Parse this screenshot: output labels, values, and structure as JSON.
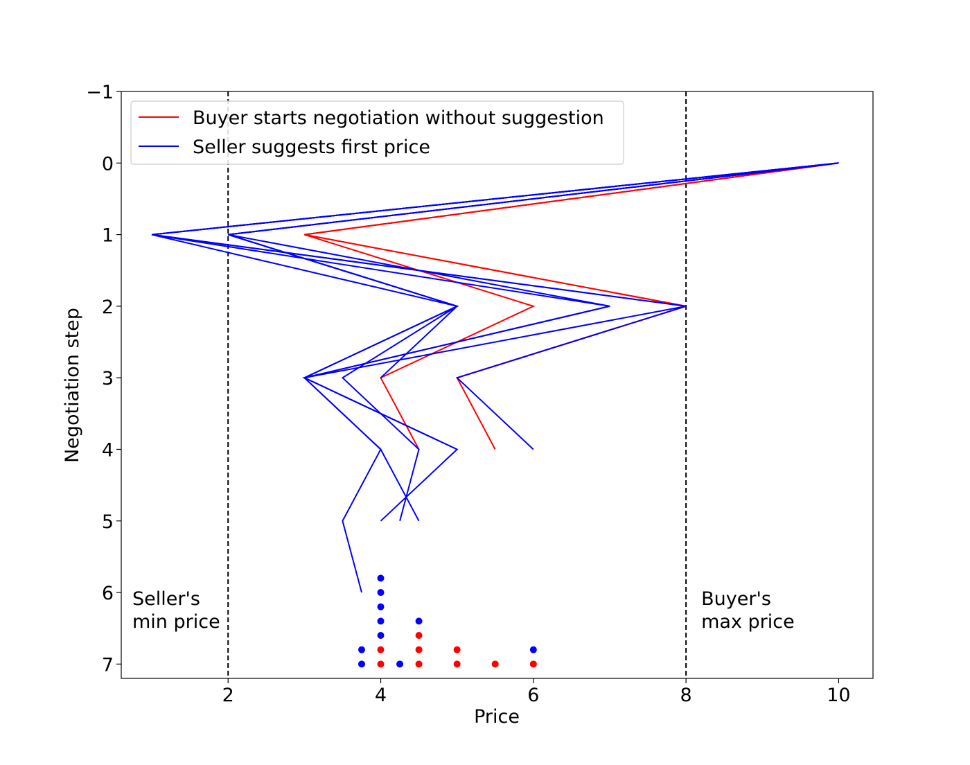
{
  "chart_data": {
    "type": "line",
    "title": "",
    "xlabel": "Price",
    "ylabel": "Negotiation step",
    "xlim": [
      0.6,
      10.45
    ],
    "ylim": [
      7.2,
      -1
    ],
    "y_inverted": true,
    "xticks": [
      2,
      4,
      6,
      8,
      10
    ],
    "yticks": [
      -1,
      0,
      1,
      2,
      3,
      4,
      5,
      6,
      7
    ],
    "ytick_labels": [
      "−1",
      "0",
      "1",
      "2",
      "3",
      "4",
      "5",
      "6",
      "7"
    ],
    "grid": false,
    "legend": {
      "position": "top-left",
      "entries": [
        {
          "label": "Buyer starts negotiation without suggestion",
          "color": "#ff0000"
        },
        {
          "label": "Seller suggests first price",
          "color": "#0000ff"
        }
      ]
    },
    "reference_lines": [
      {
        "x": 2,
        "style": "dashed",
        "label_lines": [
          "Seller's",
          "min price"
        ],
        "label_side": "left"
      },
      {
        "x": 8,
        "style": "dashed",
        "label_lines": [
          "Buyer's",
          "max price"
        ],
        "label_side": "right"
      }
    ],
    "series": [
      {
        "name": "Buyer starts negotiation without suggestion",
        "color": "#ff0000",
        "prices": [
          10,
          3,
          8,
          5,
          5.5
        ]
      },
      {
        "name": "Buyer starts negotiation without suggestion",
        "color": "#ff0000",
        "prices": [
          10,
          3,
          6,
          4,
          4.5
        ]
      },
      {
        "name": "Buyer starts negotiation without suggestion",
        "color": "#ff0000",
        "prices": [
          10,
          3,
          8,
          5
        ]
      },
      {
        "name": "Seller suggests first price",
        "color": "#0000ff",
        "prices": [
          10,
          2,
          5,
          3,
          4,
          3.5,
          3.75
        ]
      },
      {
        "name": "Seller suggests first price",
        "color": "#0000ff",
        "prices": [
          10,
          1,
          5,
          3.5,
          4.5,
          4.25
        ]
      },
      {
        "name": "Seller suggests first price",
        "color": "#0000ff",
        "prices": [
          10,
          2,
          7,
          3,
          5,
          4
        ]
      },
      {
        "name": "Seller suggests first price",
        "color": "#0000ff",
        "prices": [
          10,
          1,
          8,
          5,
          6
        ]
      },
      {
        "name": "Seller suggests first price",
        "color": "#0000ff",
        "prices": [
          10,
          2,
          5,
          3,
          4,
          4.5
        ]
      },
      {
        "name": "Seller suggests first price",
        "color": "#0000ff",
        "prices": [
          10,
          1,
          8,
          3,
          5
        ]
      },
      {
        "name": "Seller suggests first price",
        "color": "#0000ff",
        "prices": [
          10,
          2,
          5,
          4
        ]
      },
      {
        "name": "Seller suggests first price",
        "color": "#0000ff",
        "prices": [
          10,
          1,
          7,
          3
        ]
      }
    ],
    "final_price_dots": [
      {
        "x": 3.75,
        "y": 7,
        "color": "#0000ff"
      },
      {
        "x": 3.75,
        "y": 6.8,
        "color": "#0000ff"
      },
      {
        "x": 4,
        "y": 7,
        "color": "#ff0000"
      },
      {
        "x": 4,
        "y": 6.8,
        "color": "#ff0000"
      },
      {
        "x": 4,
        "y": 6.6,
        "color": "#0000ff"
      },
      {
        "x": 4,
        "y": 6.4,
        "color": "#0000ff"
      },
      {
        "x": 4,
        "y": 6.2,
        "color": "#0000ff"
      },
      {
        "x": 4,
        "y": 6.0,
        "color": "#0000ff"
      },
      {
        "x": 4,
        "y": 5.8,
        "color": "#0000ff"
      },
      {
        "x": 4.25,
        "y": 7,
        "color": "#0000ff"
      },
      {
        "x": 4.5,
        "y": 7,
        "color": "#ff0000"
      },
      {
        "x": 4.5,
        "y": 6.8,
        "color": "#ff0000"
      },
      {
        "x": 4.5,
        "y": 6.6,
        "color": "#ff0000"
      },
      {
        "x": 4.5,
        "y": 6.4,
        "color": "#0000ff"
      },
      {
        "x": 5,
        "y": 7,
        "color": "#ff0000"
      },
      {
        "x": 5,
        "y": 6.8,
        "color": "#ff0000"
      },
      {
        "x": 5.5,
        "y": 7,
        "color": "#ff0000"
      },
      {
        "x": 6,
        "y": 7,
        "color": "#ff0000"
      },
      {
        "x": 6,
        "y": 6.8,
        "color": "#0000ff"
      }
    ]
  }
}
